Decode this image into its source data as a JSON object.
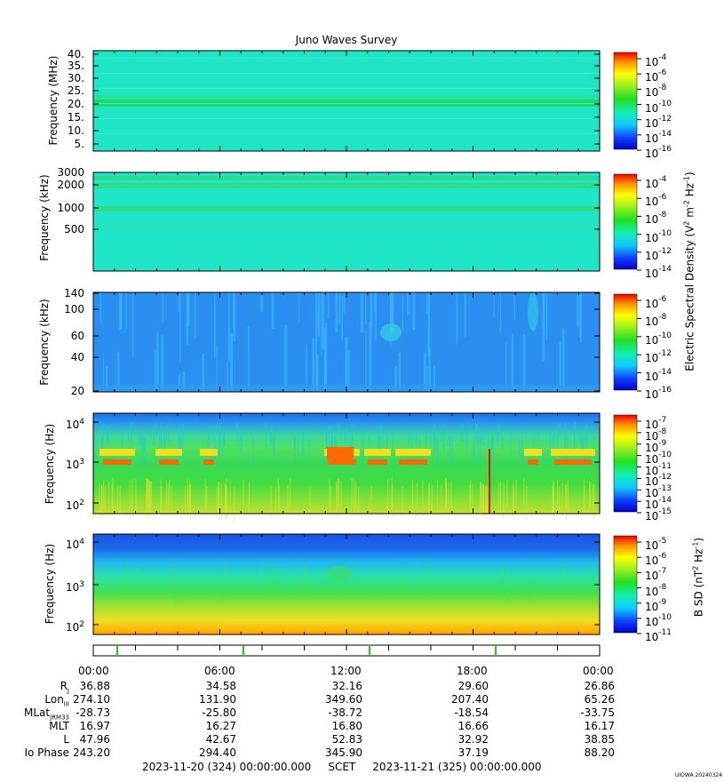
{
  "chart_data": {
    "type": "heatmap",
    "title": "Juno Waves Survey",
    "x_range": [
      "2023-11-20 00:00",
      "2023-11-21 00:00"
    ],
    "x_tick_labels": [
      "00:00",
      "06:00",
      "12:00",
      "18:00",
      "00:00"
    ],
    "panels": [
      {
        "id": "p1",
        "ylabel": "Frequency (MHz)",
        "yticks": [
          "40.",
          "35.",
          "30.",
          "25.",
          "20.",
          "15.",
          "10.",
          "5."
        ],
        "ylim": [
          3.5,
          41
        ],
        "scale": "linear",
        "colorbar": {
          "base": "10",
          "exps": [
            "-4",
            "-6",
            "-8",
            "-10",
            "-12",
            "-14",
            "-16"
          ]
        },
        "colors": {
          "bg": "#1ee6c4",
          "band": "#1fd869"
        }
      },
      {
        "id": "p2",
        "ylabel": "Frequency (kHz)",
        "yticks": [
          "3000",
          "2000",
          "1000",
          "500"
        ],
        "ylim": [
          140,
          3000
        ],
        "scale": "log",
        "colorbar": {
          "base": "10",
          "exps": [
            "-4",
            "-6",
            "-8",
            "-10",
            "-12",
            "-14"
          ]
        },
        "colors": {
          "bg": "#20e6c8",
          "band": "#2bdc8a"
        }
      },
      {
        "id": "p3",
        "ylabel": "Frequency (kHz)",
        "yticks": [
          "140",
          "100",
          "60",
          "40",
          "20"
        ],
        "ylim": [
          20,
          140
        ],
        "scale": "log",
        "colorbar": {
          "base": "10",
          "exps": [
            "-6",
            "-8",
            "-10",
            "-12",
            "-14",
            "-16"
          ]
        },
        "colors": {
          "bg": "#2a8ff0",
          "streak": "#42b8f6",
          "patch": "#33d1e6"
        }
      },
      {
        "id": "p4",
        "ylabel": "Frequency (Hz)",
        "yticks": [
          "10",
          "10",
          "10"
        ],
        "ytick_exps": [
          "4",
          "3",
          "2"
        ],
        "ylim": [
          50,
          20000
        ],
        "scale": "log",
        "colorbar": {
          "base": "10",
          "exps": [
            "-7",
            "-8",
            "-9",
            "-10",
            "-11",
            "-12",
            "-13",
            "-14",
            "-15"
          ]
        },
        "colors": {
          "top": "#1f7ae8",
          "mid": "#3ce06a",
          "low": "#a8e040",
          "hot": "#ff6a00",
          "red": "#e01010"
        }
      },
      {
        "id": "p5",
        "ylabel": "Frequency (Hz)",
        "yticks": [
          "10",
          "10",
          "10"
        ],
        "ytick_exps": [
          "4",
          "3",
          "2"
        ],
        "ylim": [
          50,
          22000
        ],
        "scale": "log",
        "colorbar": {
          "base": "10",
          "exps": [
            "-5",
            "-6",
            "-7",
            "-8",
            "-9",
            "-10",
            "-11"
          ]
        },
        "colors": {
          "top": "#1a5fe0",
          "mid": "#2ed89a",
          "low": "#f0d020",
          "bottom": "#ffa000"
        }
      }
    ],
    "colorbar_labels": {
      "electric": "Electric Spectral Density (V",
      "electric_sup1": "2",
      "electric_mid": " m",
      "electric_sup2": "-2",
      "electric_mid2": " Hz",
      "electric_sup3": "-1",
      "electric_end": ")",
      "magnetic": "B SD (nT",
      "magnetic_sup1": "2",
      "magnetic_mid": " Hz",
      "magnetic_sup2": "-1",
      "magnetic_end": ")"
    },
    "ephemeris": {
      "rows": [
        {
          "label": "R",
          "sub": "J",
          "values": [
            "36.88",
            "34.58",
            "32.16",
            "29.60",
            "26.86"
          ]
        },
        {
          "label": "Lon",
          "sub": "III",
          "values": [
            "274.10",
            "131.90",
            "349.60",
            "207.40",
            "65.26"
          ]
        },
        {
          "label": "MLat",
          "sub": "JRM33",
          "values": [
            "-28.73",
            "-25.80",
            "-38.72",
            "-18.54",
            "-33.75"
          ]
        },
        {
          "label": "MLT",
          "sub": "",
          "values": [
            "16.97",
            "16.27",
            "16.80",
            "16.66",
            "16.17"
          ]
        },
        {
          "label": "L",
          "sub": "",
          "values": [
            "47.96",
            "42.67",
            "52.83",
            "32.92",
            "38.85"
          ]
        },
        {
          "label": "Io Phase",
          "sub": "",
          "values": [
            "243.20",
            "294.40",
            "345.90",
            "37.19",
            "88.20"
          ]
        }
      ]
    },
    "footer": "2023-11-20 (324) 00:00:00.000     SCET     2023-11-21 (325) 00:00:00.000",
    "credit": "UIOWA 20240324"
  }
}
